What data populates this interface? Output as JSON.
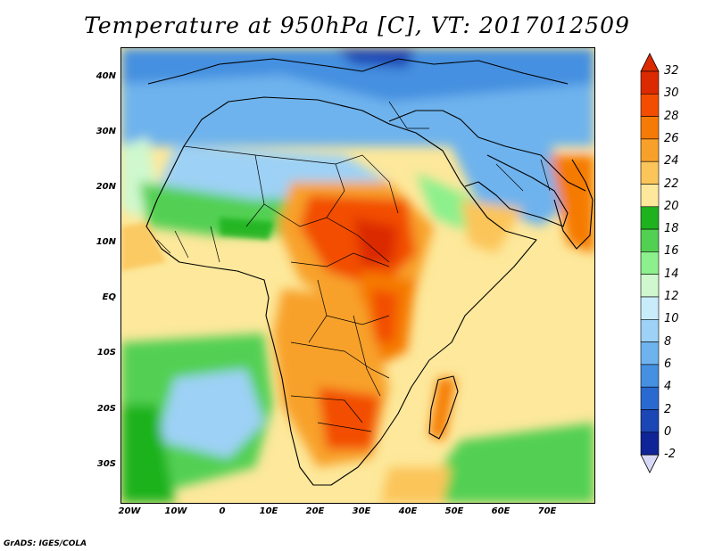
{
  "title": "Temperature at 950hPa [C], VT: 2017012509",
  "credit": "GrADS: IGES/COLA",
  "lat_labels": [
    "40N",
    "30N",
    "20N",
    "10N",
    "EQ",
    "10S",
    "20S",
    "30S"
  ],
  "lon_labels": [
    "20W",
    "10W",
    "0",
    "10E",
    "20E",
    "30E",
    "40E",
    "50E",
    "60E",
    "70E"
  ],
  "colorbar": {
    "labels": [
      "32",
      "30",
      "28",
      "26",
      "24",
      "22",
      "20",
      "18",
      "16",
      "14",
      "12",
      "10",
      "8",
      "6",
      "4",
      "2",
      "0",
      "-2"
    ],
    "colors": [
      "#dc2a00",
      "#f24d00",
      "#f57a06",
      "#f8a12a",
      "#fbc55a",
      "#fde89b",
      "#1fb21f",
      "#52d052",
      "#8cf08c",
      "#cff8cf",
      "#c9ecfa",
      "#9dd1f5",
      "#6eb3ed",
      "#4590e0",
      "#2a6ad0",
      "#1a46b6",
      "#0f2496",
      "#d8d8f8"
    ]
  }
}
